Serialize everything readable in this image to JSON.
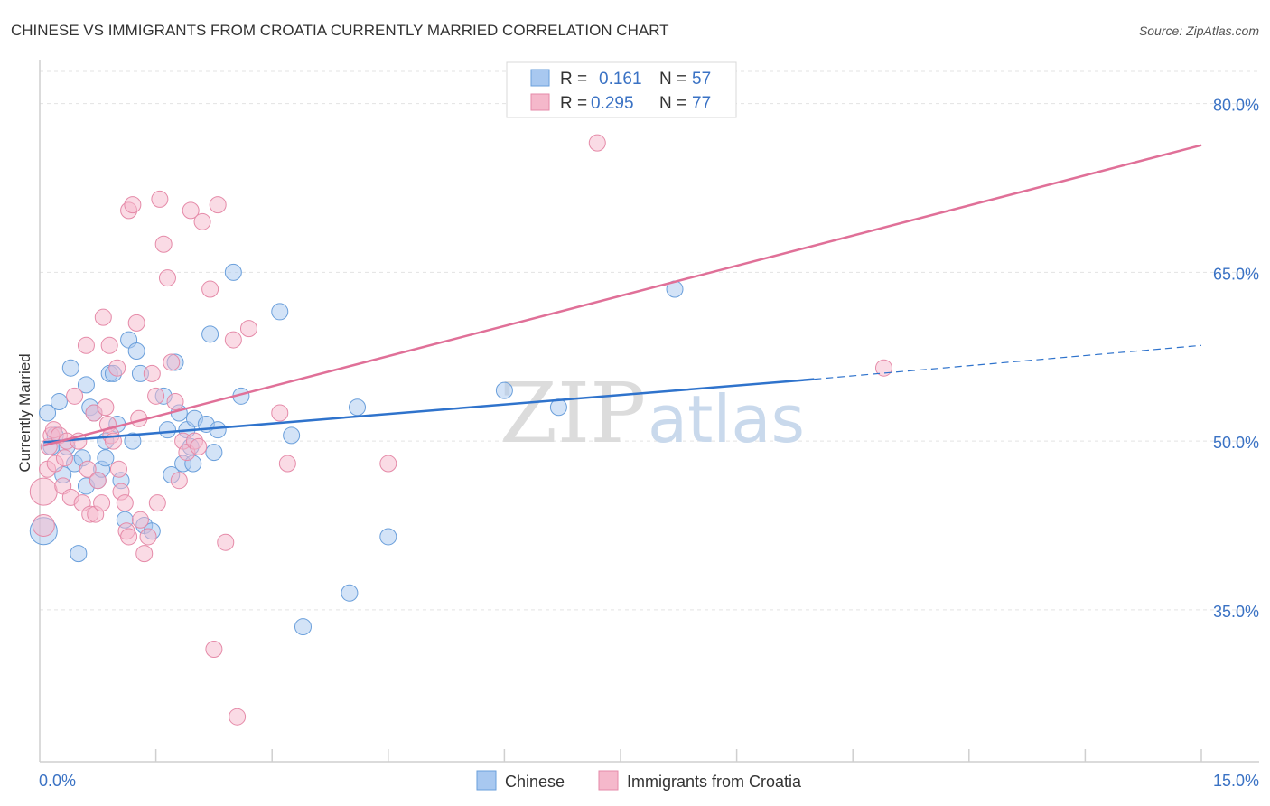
{
  "title": "CHINESE VS IMMIGRANTS FROM CROATIA CURRENTLY MARRIED CORRELATION CHART",
  "source": "Source: ZipAtlas.com",
  "watermark": {
    "zip": "ZIP",
    "atlas": "atlas"
  },
  "colors": {
    "blue_fill": "#a8c8f0",
    "blue_stroke": "#6a9fdb",
    "blue_line": "#2f73cc",
    "pink_fill": "#f5b8cb",
    "pink_stroke": "#e58aa8",
    "pink_line": "#e07098",
    "value_text": "#3a72c4",
    "grid": "#e3e3e3",
    "axis": "#cfcfcf"
  },
  "legend": {
    "r_label": "R =",
    "n_label": "N =",
    "series": [
      {
        "r": "0.161",
        "n": "57"
      },
      {
        "r": "0.295",
        "n": "77"
      }
    ]
  },
  "chart_data": {
    "type": "scatter",
    "title": "CHINESE VS IMMIGRANTS FROM CROATIA CURRENTLY MARRIED CORRELATION CHART",
    "xlabel": "",
    "ylabel": "Currently Married",
    "xlim": [
      0,
      15
    ],
    "ylim": [
      21.5,
      83.5
    ],
    "x_tick_labels": [
      "0.0%",
      "15.0%"
    ],
    "y_ticks": [
      35,
      50,
      65,
      80
    ],
    "y_tick_labels": [
      "35.0%",
      "50.0%",
      "65.0%",
      "80.0%"
    ],
    "series": [
      {
        "name": "Chinese",
        "r": 0.161,
        "n": 57,
        "trend": {
          "x0": 0.05,
          "y0": 49.9,
          "x1": 10.0,
          "y1": 55.5,
          "dash_x1": 15.0,
          "dash_y1": 58.5
        },
        "points": [
          [
            0.05,
            42.0,
            15
          ],
          [
            0.1,
            52.5,
            9
          ],
          [
            0.15,
            49.5,
            9
          ],
          [
            0.2,
            50.5,
            9
          ],
          [
            0.25,
            53.5,
            9
          ],
          [
            0.3,
            47.0,
            9
          ],
          [
            0.35,
            49.5,
            9
          ],
          [
            0.4,
            56.5,
            9
          ],
          [
            0.45,
            48.0,
            9
          ],
          [
            0.5,
            40.0,
            9
          ],
          [
            0.55,
            48.5,
            9
          ],
          [
            0.6,
            46.0,
            9
          ],
          [
            0.6,
            55.0,
            9
          ],
          [
            0.65,
            53.0,
            9
          ],
          [
            0.7,
            52.5,
            9
          ],
          [
            0.75,
            46.5,
            9
          ],
          [
            0.8,
            47.5,
            9
          ],
          [
            0.85,
            50.0,
            9
          ],
          [
            0.85,
            48.5,
            9
          ],
          [
            0.9,
            56.0,
            9
          ],
          [
            0.95,
            56.0,
            9
          ],
          [
            1.0,
            51.5,
            9
          ],
          [
            1.05,
            46.5,
            9
          ],
          [
            1.1,
            43.0,
            9
          ],
          [
            1.15,
            59.0,
            9
          ],
          [
            1.2,
            50.0,
            9
          ],
          [
            1.25,
            58.0,
            9
          ],
          [
            1.3,
            56.0,
            9
          ],
          [
            1.35,
            42.5,
            9
          ],
          [
            1.45,
            42.0,
            9
          ],
          [
            1.6,
            54.0,
            9
          ],
          [
            1.65,
            51.0,
            9
          ],
          [
            1.7,
            47.0,
            9
          ],
          [
            1.75,
            57.0,
            9
          ],
          [
            1.8,
            52.5,
            9
          ],
          [
            1.85,
            48.0,
            9
          ],
          [
            1.9,
            51.0,
            9
          ],
          [
            1.95,
            49.5,
            9
          ],
          [
            1.98,
            48.0,
            9
          ],
          [
            2.0,
            52.0,
            9
          ],
          [
            2.15,
            51.5,
            9
          ],
          [
            2.2,
            59.5,
            9
          ],
          [
            2.25,
            49.0,
            9
          ],
          [
            2.3,
            51.0,
            9
          ],
          [
            2.5,
            65.0,
            9
          ],
          [
            2.6,
            54.0,
            9
          ],
          [
            3.1,
            61.5,
            9
          ],
          [
            3.25,
            50.5,
            9
          ],
          [
            3.4,
            33.5,
            9
          ],
          [
            4.0,
            36.5,
            9
          ],
          [
            4.1,
            53.0,
            9
          ],
          [
            4.5,
            41.5,
            9
          ],
          [
            6.0,
            54.5,
            9
          ],
          [
            6.7,
            53.0,
            9
          ],
          [
            8.2,
            63.5,
            9
          ]
        ]
      },
      {
        "name": "Immigrants from Croatia",
        "r": 0.295,
        "n": 77,
        "trend": {
          "x0": 0.05,
          "y0": 49.6,
          "x1": 15.0,
          "y1": 76.3
        },
        "points": [
          [
            0.05,
            45.5,
            15
          ],
          [
            0.05,
            42.5,
            12
          ],
          [
            0.1,
            47.5,
            9
          ],
          [
            0.12,
            49.5,
            9
          ],
          [
            0.15,
            50.5,
            9
          ],
          [
            0.18,
            51.0,
            9
          ],
          [
            0.2,
            48.0,
            9
          ],
          [
            0.25,
            50.5,
            9
          ],
          [
            0.3,
            46.0,
            9
          ],
          [
            0.32,
            48.5,
            9
          ],
          [
            0.35,
            50.0,
            9
          ],
          [
            0.4,
            45.0,
            9
          ],
          [
            0.45,
            54.0,
            9
          ],
          [
            0.5,
            50.0,
            9
          ],
          [
            0.55,
            44.5,
            9
          ],
          [
            0.6,
            58.5,
            9
          ],
          [
            0.62,
            47.5,
            9
          ],
          [
            0.65,
            43.5,
            9
          ],
          [
            0.7,
            52.5,
            9
          ],
          [
            0.72,
            43.5,
            9
          ],
          [
            0.75,
            46.5,
            9
          ],
          [
            0.8,
            44.5,
            9
          ],
          [
            0.82,
            61.0,
            9
          ],
          [
            0.85,
            53.0,
            9
          ],
          [
            0.88,
            51.5,
            9
          ],
          [
            0.9,
            58.5,
            9
          ],
          [
            0.92,
            50.5,
            9
          ],
          [
            0.95,
            50.0,
            9
          ],
          [
            1.0,
            56.5,
            9
          ],
          [
            1.02,
            47.5,
            9
          ],
          [
            1.05,
            45.5,
            9
          ],
          [
            1.1,
            44.5,
            9
          ],
          [
            1.12,
            42.0,
            9
          ],
          [
            1.15,
            41.5,
            9
          ],
          [
            1.15,
            70.5,
            9
          ],
          [
            1.2,
            71.0,
            9
          ],
          [
            1.25,
            60.5,
            9
          ],
          [
            1.28,
            52.0,
            9
          ],
          [
            1.3,
            43.0,
            9
          ],
          [
            1.35,
            40.0,
            9
          ],
          [
            1.4,
            41.5,
            9
          ],
          [
            1.45,
            56.0,
            9
          ],
          [
            1.5,
            54.0,
            9
          ],
          [
            1.52,
            44.5,
            9
          ],
          [
            1.55,
            71.5,
            9
          ],
          [
            1.6,
            67.5,
            9
          ],
          [
            1.65,
            64.5,
            9
          ],
          [
            1.7,
            57.0,
            9
          ],
          [
            1.75,
            53.5,
            9
          ],
          [
            1.8,
            46.5,
            9
          ],
          [
            1.85,
            50.0,
            9
          ],
          [
            1.9,
            49.0,
            9
          ],
          [
            1.95,
            70.5,
            9
          ],
          [
            2.0,
            50.0,
            9
          ],
          [
            2.05,
            49.5,
            9
          ],
          [
            2.1,
            69.5,
            9
          ],
          [
            2.2,
            63.5,
            9
          ],
          [
            2.25,
            31.5,
            9
          ],
          [
            2.3,
            71.0,
            9
          ],
          [
            2.4,
            41.0,
            9
          ],
          [
            2.5,
            59.0,
            9
          ],
          [
            2.55,
            25.5,
            9
          ],
          [
            2.7,
            60.0,
            9
          ],
          [
            3.1,
            52.5,
            9
          ],
          [
            3.2,
            48.0,
            9
          ],
          [
            4.5,
            48.0,
            9
          ],
          [
            7.2,
            76.5,
            9
          ],
          [
            10.9,
            56.5,
            9
          ]
        ]
      }
    ]
  },
  "bottom_legend": [
    {
      "label": "Chinese"
    },
    {
      "label": "Immigrants from Croatia"
    }
  ]
}
